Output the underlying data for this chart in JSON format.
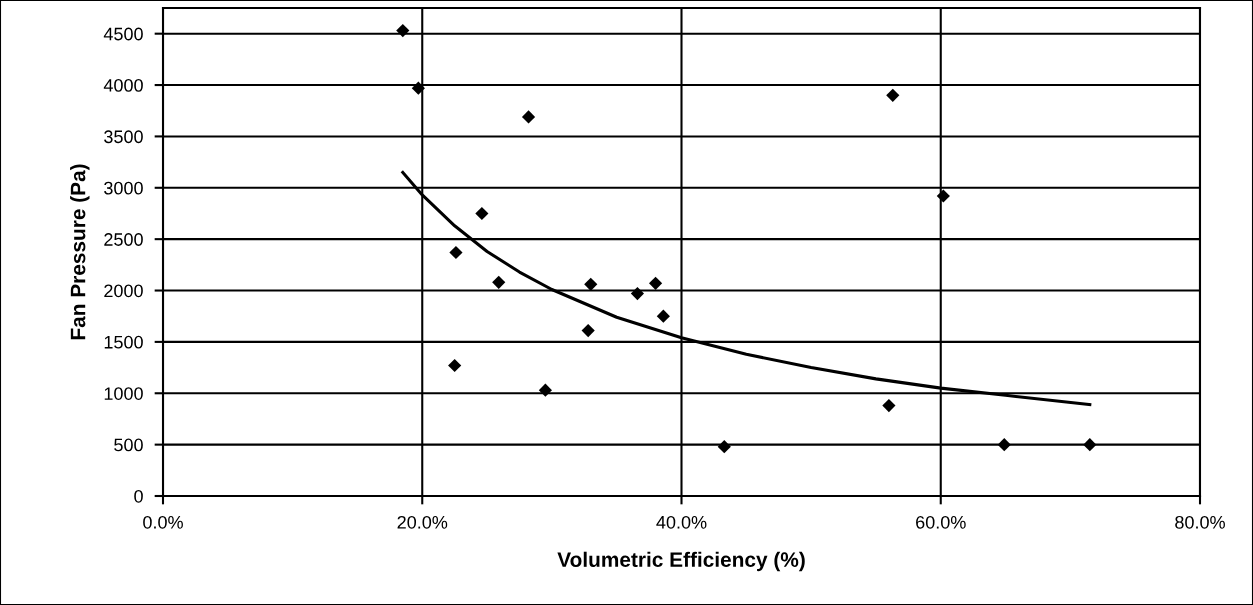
{
  "chart_data": {
    "type": "scatter",
    "xlabel": "Volumetric Efficiency (%)",
    "ylabel": "Fan Pressure (Pa)",
    "series": [
      {
        "color": "#000000",
        "marker": "diamond",
        "x": [
          18.5,
          19.7,
          28.2,
          24.6,
          22.6,
          25.9,
          33.0,
          36.6,
          32.8,
          22.5,
          29.5,
          38.0,
          38.6,
          43.3,
          56.0,
          64.9,
          71.5,
          56.3,
          60.2
        ],
        "values": [
          4530,
          3970,
          3690,
          2750,
          2370,
          2080,
          2060,
          1970,
          1610,
          1270,
          1030,
          2070,
          1750,
          480,
          880,
          500,
          500,
          3900,
          2920
        ]
      },
      {
        "type": "line",
        "color": "#000000",
        "marker": "none",
        "line_style": "solid",
        "x": [
          18.5,
          20,
          22.5,
          25,
          27.5,
          30,
          35,
          40,
          45,
          50,
          55,
          60,
          65,
          71.5
        ],
        "values": [
          3150,
          2930,
          2630,
          2380,
          2180,
          2010,
          1740,
          1540,
          1380,
          1250,
          1140,
          1050,
          980,
          890
        ]
      }
    ],
    "xlim": [
      0,
      80
    ],
    "xticks": [
      {
        "value": 0,
        "label": "0.0%"
      },
      {
        "value": 20,
        "label": "20.0%"
      },
      {
        "value": 40,
        "label": "40.0%"
      },
      {
        "value": 60,
        "label": "60.0%"
      },
      {
        "value": 80,
        "label": "80.0%"
      }
    ],
    "ylim": [
      0,
      4750
    ],
    "yticks": [
      0,
      500,
      1000,
      1500,
      2000,
      2500,
      3000,
      3500,
      4000,
      4500
    ],
    "grid": true,
    "legend": false
  }
}
